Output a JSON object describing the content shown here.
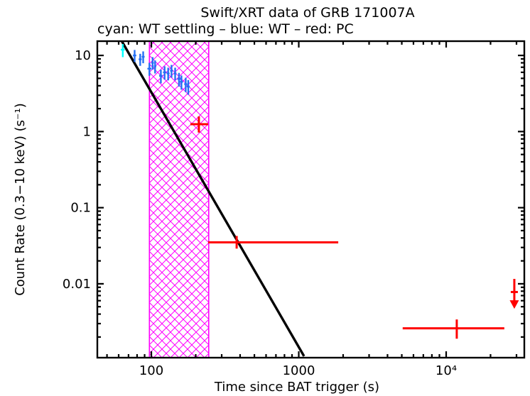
{
  "figure": {
    "background": "#ffffff"
  },
  "chart_data": {
    "type": "scatter",
    "title": "Swift/XRT data of GRB 171007A",
    "subtitle": "cyan: WT settling – blue: WT – red: PC",
    "xlabel": "Time since BAT trigger (s)",
    "ylabel": "Count Rate (0.3−10 keV) (s⁻¹)",
    "xscale": "log",
    "yscale": "log",
    "xlim": [
      43,
      33900
    ],
    "ylim": [
      0.00107,
      15.4
    ],
    "grid": false,
    "x_major_ticks": [
      {
        "value": 100,
        "label": "100"
      },
      {
        "value": 1000,
        "label": "1000"
      },
      {
        "value": 10000,
        "label": "10⁴"
      }
    ],
    "y_major_ticks": [
      {
        "value": 10,
        "label": "10"
      },
      {
        "value": 1,
        "label": "1"
      },
      {
        "value": 0.1,
        "label": "0.1"
      },
      {
        "value": 0.01,
        "label": "0.01"
      }
    ],
    "band": {
      "x_from": 97,
      "x_to": 245,
      "color": "#ff00ff",
      "style": "crosshatch"
    },
    "fit_line": {
      "color": "#000000",
      "points": [
        [
          63,
          15.4
        ],
        [
          1086,
          0.00112
        ]
      ]
    },
    "series": [
      {
        "name": "WT settling",
        "color": "#00ffff",
        "points": [
          {
            "t": 64,
            "t_lo": 2,
            "t_hi": 2,
            "rate": 11.9,
            "r_lo": 2.4,
            "r_hi": 2.2
          }
        ]
      },
      {
        "name": "WT",
        "color": "#2470f5",
        "points": [
          {
            "t": 77,
            "t_lo": 2,
            "t_hi": 2,
            "rate": 10.0,
            "r_lo": 1.8,
            "r_hi": 1.8
          },
          {
            "t": 84,
            "t_lo": 2,
            "t_hi": 2,
            "rate": 8.9,
            "r_lo": 1.6,
            "r_hi": 1.6
          },
          {
            "t": 88,
            "t_lo": 2,
            "t_hi": 2,
            "rate": 9.6,
            "r_lo": 1.7,
            "r_hi": 1.7
          },
          {
            "t": 97,
            "t_lo": 3,
            "t_hi": 3,
            "rate": 6.7,
            "r_lo": 1.3,
            "r_hi": 1.3
          },
          {
            "t": 102,
            "t_lo": 2,
            "t_hi": 2,
            "rate": 8.0,
            "r_lo": 1.5,
            "r_hi": 1.5
          },
          {
            "t": 106,
            "t_lo": 2,
            "t_hi": 2,
            "rate": 7.2,
            "r_lo": 1.4,
            "r_hi": 1.4
          },
          {
            "t": 116,
            "t_lo": 3,
            "t_hi": 3,
            "rate": 5.4,
            "r_lo": 1.1,
            "r_hi": 1.1
          },
          {
            "t": 123,
            "t_lo": 3,
            "t_hi": 3,
            "rate": 6.0,
            "r_lo": 1.2,
            "r_hi": 1.2
          },
          {
            "t": 130,
            "t_lo": 3,
            "t_hi": 3,
            "rate": 5.8,
            "r_lo": 1.1,
            "r_hi": 1.1
          },
          {
            "t": 137,
            "t_lo": 3,
            "t_hi": 3,
            "rate": 6.3,
            "r_lo": 1.2,
            "r_hi": 1.2
          },
          {
            "t": 145,
            "t_lo": 3,
            "t_hi": 3,
            "rate": 5.8,
            "r_lo": 1.1,
            "r_hi": 1.1
          },
          {
            "t": 154,
            "t_lo": 4,
            "t_hi": 4,
            "rate": 4.9,
            "r_lo": 1.0,
            "r_hi": 1.0
          },
          {
            "t": 160,
            "t_lo": 4,
            "t_hi": 4,
            "rate": 4.5,
            "r_lo": 0.95,
            "r_hi": 0.95
          },
          {
            "t": 171,
            "t_lo": 4,
            "t_hi": 4,
            "rate": 4.2,
            "r_lo": 0.9,
            "r_hi": 0.9
          },
          {
            "t": 178,
            "t_lo": 4,
            "t_hi": 4,
            "rate": 3.9,
            "r_lo": 0.85,
            "r_hi": 0.85
          }
        ]
      },
      {
        "name": "PC",
        "color": "#ff0000",
        "points": [
          {
            "t": 210,
            "t_lo": 26,
            "t_hi": 33,
            "rate": 1.25,
            "r_lo": 0.28,
            "r_hi": 0.33
          },
          {
            "t": 379,
            "t_lo": 136,
            "t_hi": 1474,
            "rate": 0.035,
            "r_lo": 0.006,
            "r_hi": 0.0075
          },
          {
            "t": 11800,
            "t_lo": 6730,
            "t_hi": 13000,
            "rate": 0.0026,
            "r_lo": 0.0007,
            "r_hi": 0.0008
          }
        ]
      }
    ],
    "upper_limit": {
      "series": "PC",
      "color": "#ff0000",
      "t": 29000,
      "rate": 0.0078,
      "arrow_from": 0.0116,
      "arrow_to": 0.0047
    }
  }
}
